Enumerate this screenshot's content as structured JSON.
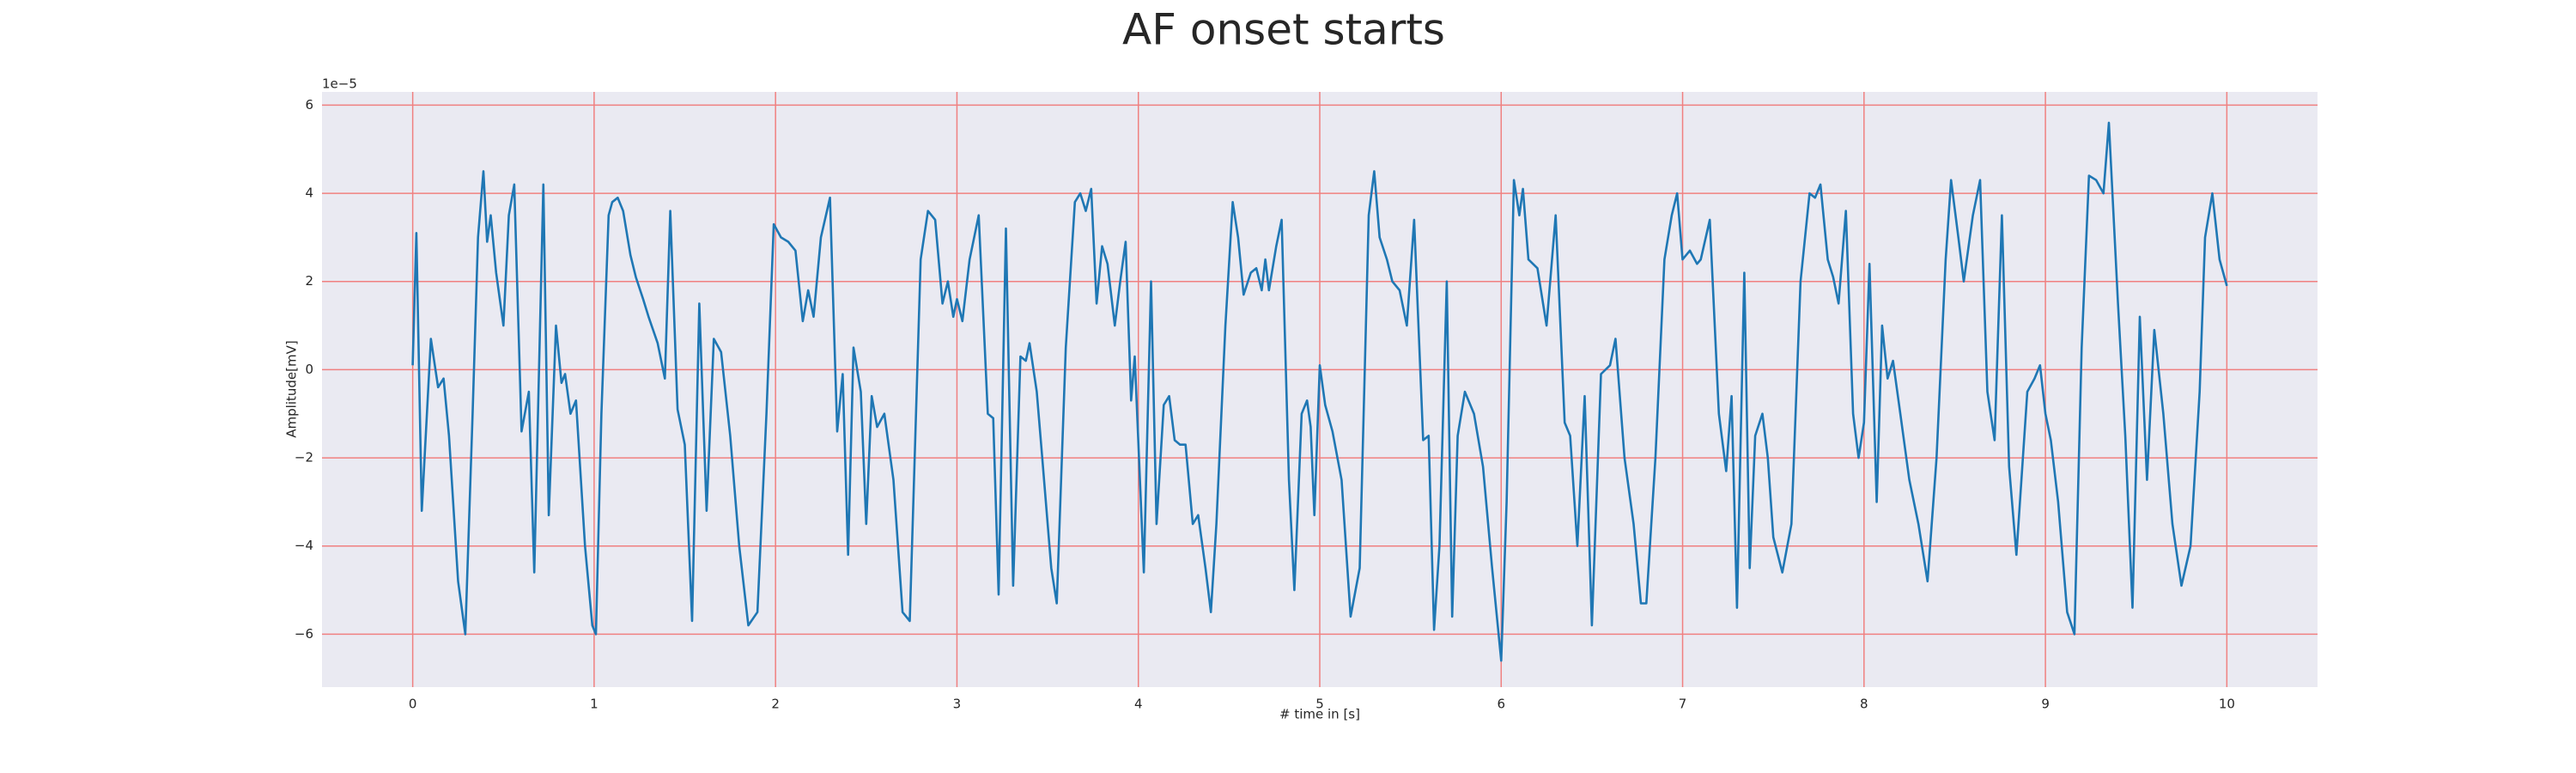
{
  "chart_data": {
    "type": "line",
    "title": "AF onset starts",
    "x_label": "# time in [s]",
    "y_label": "Amplitude[mV]",
    "y_offset_label": "1e−5",
    "xlim": [
      -0.5,
      10.5
    ],
    "ylim": [
      -7.2,
      6.3
    ],
    "xticks": [
      0,
      1,
      2,
      3,
      4,
      5,
      6,
      7,
      8,
      9,
      10
    ],
    "yticks": [
      {
        "value": -6,
        "label": "−6"
      },
      {
        "value": -4,
        "label": "−4"
      },
      {
        "value": -2,
        "label": "−2"
      },
      0,
      2,
      4,
      6
    ],
    "grid": true,
    "grid_color": "#f08080",
    "background": "#eaeaf2",
    "x": [
      0,
      0.02,
      0.05,
      0.1,
      0.14,
      0.17,
      0.2,
      0.25,
      0.29,
      0.33,
      0.36,
      0.39,
      0.41,
      0.43,
      0.46,
      0.5,
      0.53,
      0.56,
      0.6,
      0.64,
      0.67,
      0.72,
      0.75,
      0.79,
      0.82,
      0.84,
      0.87,
      0.9,
      0.95,
      0.99,
      1.01,
      1.04,
      1.08,
      1.1,
      1.13,
      1.16,
      1.2,
      1.23,
      1.27,
      1.3,
      1.35,
      1.39,
      1.42,
      1.46,
      1.5,
      1.54,
      1.58,
      1.62,
      1.66,
      1.7,
      1.75,
      1.8,
      1.85,
      1.9,
      1.95,
      1.99,
      2.03,
      2.07,
      2.11,
      2.15,
      2.18,
      2.21,
      2.25,
      2.3,
      2.34,
      2.37,
      2.4,
      2.43,
      2.47,
      2.5,
      2.53,
      2.56,
      2.6,
      2.65,
      2.7,
      2.74,
      2.8,
      2.84,
      2.88,
      2.92,
      2.95,
      2.98,
      3.0,
      3.03,
      3.07,
      3.12,
      3.17,
      3.2,
      3.23,
      3.27,
      3.31,
      3.35,
      3.38,
      3.4,
      3.44,
      3.47,
      3.52,
      3.55,
      3.6,
      3.65,
      3.68,
      3.71,
      3.74,
      3.77,
      3.8,
      3.83,
      3.87,
      3.9,
      3.93,
      3.96,
      3.98,
      4.03,
      4.07,
      4.1,
      4.14,
      4.17,
      4.2,
      4.23,
      4.26,
      4.3,
      4.33,
      4.37,
      4.4,
      4.43,
      4.48,
      4.52,
      4.55,
      4.58,
      4.62,
      4.65,
      4.68,
      4.7,
      4.72,
      4.76,
      4.79,
      4.83,
      4.86,
      4.9,
      4.93,
      4.95,
      4.97,
      5.0,
      5.03,
      5.07,
      5.12,
      5.17,
      5.22,
      5.27,
      5.3,
      5.33,
      5.37,
      5.4,
      5.44,
      5.48,
      5.52,
      5.57,
      5.6,
      5.63,
      5.66,
      5.7,
      5.73,
      5.76,
      5.8,
      5.85,
      5.9,
      5.95,
      6.0,
      6.03,
      6.07,
      6.1,
      6.12,
      6.15,
      6.2,
      6.25,
      6.3,
      6.35,
      6.38,
      6.42,
      6.46,
      6.5,
      6.55,
      6.6,
      6.63,
      6.68,
      6.73,
      6.77,
      6.8,
      6.85,
      6.9,
      6.94,
      6.97,
      7.0,
      7.04,
      7.08,
      7.1,
      7.15,
      7.2,
      7.24,
      7.27,
      7.3,
      7.34,
      7.37,
      7.4,
      7.44,
      7.47,
      7.5,
      7.55,
      7.6,
      7.65,
      7.7,
      7.73,
      7.76,
      7.8,
      7.83,
      7.86,
      7.9,
      7.94,
      7.97,
      8.0,
      8.03,
      8.07,
      8.1,
      8.13,
      8.16,
      8.2,
      8.25,
      8.3,
      8.35,
      8.4,
      8.45,
      8.48,
      8.52,
      8.55,
      8.6,
      8.64,
      8.68,
      8.72,
      8.76,
      8.8,
      8.84,
      8.9,
      8.94,
      8.97,
      9.0,
      9.03,
      9.07,
      9.12,
      9.16,
      9.2,
      9.24,
      9.28,
      9.32,
      9.35,
      9.4,
      9.44,
      9.48,
      9.52,
      9.56,
      9.6,
      9.65,
      9.7,
      9.75,
      9.8,
      9.85,
      9.88,
      9.92,
      9.96,
      10.0
    ],
    "series": [
      {
        "color": "#1f77b4",
        "values": [
          0.1,
          3.1,
          -3.2,
          0.7,
          -0.4,
          -0.2,
          -1.5,
          -4.8,
          -6.0,
          -1.0,
          3.0,
          4.5,
          2.9,
          3.5,
          2.2,
          1.0,
          3.5,
          4.2,
          -1.4,
          -0.5,
          -4.6,
          4.2,
          -3.3,
          1.0,
          -0.3,
          -0.1,
          -1.0,
          -0.7,
          -4.0,
          -5.8,
          -6.0,
          -1.0,
          3.5,
          3.8,
          3.9,
          3.6,
          2.6,
          2.1,
          1.6,
          1.2,
          0.6,
          -0.2,
          3.6,
          -0.9,
          -1.7,
          -5.7,
          1.5,
          -3.2,
          0.7,
          0.4,
          -1.5,
          -4.0,
          -5.8,
          -5.5,
          -1.0,
          3.3,
          3.0,
          2.9,
          2.7,
          1.1,
          1.8,
          1.2,
          3.0,
          3.9,
          -1.4,
          -0.1,
          -4.2,
          0.5,
          -0.5,
          -3.5,
          -0.6,
          -1.3,
          -1.0,
          -2.5,
          -5.5,
          -5.7,
          2.5,
          3.6,
          3.4,
          1.5,
          2.0,
          1.2,
          1.6,
          1.1,
          2.5,
          3.5,
          -1.0,
          -1.1,
          -5.1,
          3.2,
          -4.9,
          0.3,
          0.2,
          0.6,
          -0.5,
          -2.0,
          -4.5,
          -5.3,
          0.5,
          3.8,
          4.0,
          3.6,
          4.1,
          1.5,
          2.8,
          2.4,
          1.0,
          2.0,
          2.9,
          -0.7,
          0.3,
          -4.6,
          2.0,
          -3.5,
          -0.8,
          -0.6,
          -1.6,
          -1.7,
          -1.7,
          -3.5,
          -3.3,
          -4.5,
          -5.5,
          -3.5,
          1.0,
          3.8,
          3.0,
          1.7,
          2.2,
          2.3,
          1.8,
          2.5,
          1.8,
          2.8,
          3.4,
          -2.5,
          -5.0,
          -1.0,
          -0.7,
          -1.3,
          -3.3,
          0.1,
          -0.8,
          -1.4,
          -2.5,
          -5.6,
          -4.5,
          3.5,
          4.5,
          3.0,
          2.5,
          2.0,
          1.8,
          1.0,
          3.4,
          -1.6,
          -1.5,
          -5.9,
          -4.0,
          2.0,
          -5.6,
          -1.5,
          -0.5,
          -1.0,
          -2.2,
          -4.5,
          -6.6,
          -3.0,
          4.3,
          3.5,
          4.1,
          2.5,
          2.3,
          1.0,
          3.5,
          -1.2,
          -1.5,
          -4.0,
          -0.6,
          -5.8,
          -0.1,
          0.1,
          0.7,
          -2.0,
          -3.5,
          -5.3,
          -5.3,
          -2.0,
          2.5,
          3.5,
          4.0,
          2.5,
          2.7,
          2.4,
          2.5,
          3.4,
          -1.0,
          -2.3,
          -0.6,
          -5.4,
          2.2,
          -4.5,
          -1.5,
          -1.0,
          -2.0,
          -3.8,
          -4.6,
          -3.5,
          2.0,
          4.0,
          3.9,
          4.2,
          2.5,
          2.1,
          1.5,
          3.6,
          -1.0,
          -2.0,
          -1.2,
          2.4,
          -3.0,
          1.0,
          -0.2,
          0.2,
          -1.0,
          -2.5,
          -3.5,
          -4.8,
          -2.0,
          2.5,
          4.3,
          3.0,
          2.0,
          3.5,
          4.3,
          -0.5,
          -1.6,
          3.5,
          -2.2,
          -4.2,
          -0.5,
          -0.2,
          0.1,
          -1.0,
          -1.6,
          -3.0,
          -5.5,
          -6.0,
          0.5,
          4.4,
          4.3,
          4.0,
          5.6,
          1.5,
          -1.5,
          -5.4,
          1.2,
          -2.5,
          0.9,
          -1.0,
          -3.5,
          -4.9,
          -4.0,
          -0.5,
          3.0,
          4.0,
          2.5,
          1.9
        ]
      }
    ]
  }
}
